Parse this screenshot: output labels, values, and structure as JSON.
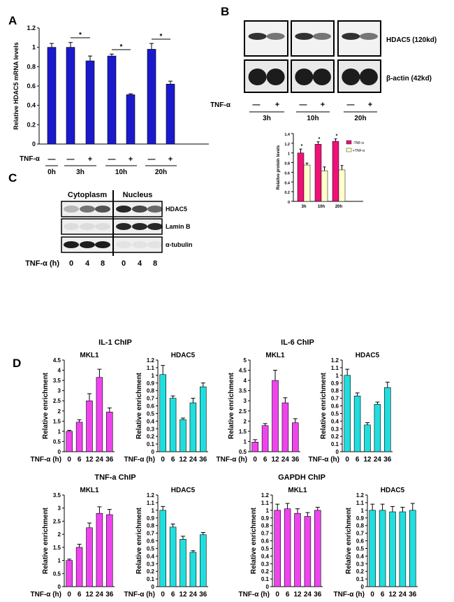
{
  "panels": {
    "A": "A",
    "B": "B",
    "C": "C",
    "D": "D"
  },
  "colors": {
    "panelA": "#1a1acc",
    "tnf_minus": "#ee1177",
    "tnf_plus": "#ffffcc",
    "mkl1": "#ee44ee",
    "hdac5": "#22dddd"
  },
  "chart_data": [
    {
      "id": "A",
      "type": "bar",
      "ylabel": "Relative HDAC5 mRNA levels",
      "ylim": [
        0,
        1.2
      ],
      "yticks": [
        "0",
        "0.2",
        "0.4",
        "0.6",
        "0.8",
        "1",
        "1.2"
      ],
      "values": [
        1.0,
        1.0,
        0.86,
        0.91,
        0.51,
        0.98,
        0.62
      ],
      "errors": [
        0.04,
        0.05,
        0.05,
        0.02,
        0.01,
        0.06,
        0.03
      ],
      "tnf_label": "TNF-α",
      "tnf_signs": [
        "—",
        "—",
        "+",
        "—",
        "+",
        "—",
        "+"
      ],
      "groups": [
        "0h",
        "3h",
        "10h",
        "20h"
      ],
      "significance": [
        "*",
        "*",
        "*"
      ]
    },
    {
      "id": "B-blot",
      "type": "blot",
      "bands": [
        "HDAC5 (120kd)",
        "β-actin (42kd)"
      ],
      "tnf_label": "TNF-α",
      "tnf_signs": [
        "—",
        "+",
        "—",
        "+",
        "—",
        "+"
      ],
      "groups": [
        "3h",
        "10h",
        "20h"
      ]
    },
    {
      "id": "B-quant",
      "type": "bar",
      "ylabel": "Relative protein levels",
      "ylim": [
        0,
        1.4
      ],
      "yticks": [
        "0",
        "0.2",
        "0.4",
        "0.6",
        "0.8",
        "1",
        "1.2",
        "1.4"
      ],
      "categories": [
        "3h",
        "10h",
        "20h"
      ],
      "series": [
        {
          "name": "-TNF-α",
          "values": [
            1.0,
            1.18,
            1.24
          ],
          "errors": [
            0.08,
            0.05,
            0.05
          ]
        },
        {
          "name": "+TNF-α",
          "values": [
            0.75,
            0.63,
            0.65
          ],
          "errors": [
            0.04,
            0.08,
            0.09
          ]
        }
      ],
      "significance": [
        "*",
        "*",
        "*"
      ]
    },
    {
      "id": "C-blot",
      "type": "blot",
      "fractions": [
        "Cytoplasm",
        "Nucleus"
      ],
      "bands": [
        "HDAC5",
        "Lamin B",
        "α-tubulin"
      ],
      "xlabel": "TNF-α (h)",
      "lanes": [
        "0",
        "4",
        "8",
        "0",
        "4",
        "8"
      ]
    },
    {
      "id": "D",
      "type": "bar",
      "title": "IL-1 ChIP",
      "subtitle": "MKL1",
      "ylabel": "Relative enrichment",
      "xlabel": "TNF-α (h)",
      "categories": [
        "0",
        "6",
        "12",
        "24",
        "36"
      ],
      "values": [
        1.0,
        1.45,
        2.5,
        3.65,
        1.95
      ],
      "errors": [
        0.05,
        0.12,
        0.35,
        0.4,
        0.2
      ],
      "ylim": [
        0,
        4.5
      ],
      "yticks": [
        "0",
        "0.5",
        "1",
        "1.5",
        "2",
        "2.5",
        "3",
        "3.5",
        "4",
        "4.5"
      ]
    },
    {
      "id": "D2",
      "type": "bar",
      "subtitle": "HDAC5",
      "ylabel": "Relative enrichment",
      "xlabel": "TNF-α (h)",
      "categories": [
        "0",
        "6",
        "12",
        "24",
        "36"
      ],
      "values": [
        1.01,
        0.7,
        0.42,
        0.64,
        0.85
      ],
      "errors": [
        0.12,
        0.03,
        0.02,
        0.06,
        0.05
      ],
      "ylim": [
        0,
        1.2
      ],
      "yticks": [
        "0",
        "0.1",
        "0.2",
        "0.3",
        "0.4",
        "0.5",
        "0.6",
        "0.7",
        "0.8",
        "0.9",
        "1",
        "1.1",
        "1.2"
      ]
    },
    {
      "id": "D3",
      "type": "bar",
      "title": "IL-6 ChIP",
      "subtitle": "MKL1",
      "ylabel": "Relative enrichment",
      "xlabel": "TNF-α (h)",
      "categories": [
        "0",
        "6",
        "12",
        "24",
        "36"
      ],
      "values": [
        0.97,
        1.78,
        4.0,
        2.9,
        1.92
      ],
      "errors": [
        0.12,
        0.1,
        0.5,
        0.25,
        0.2
      ],
      "ylim": [
        0.5,
        5
      ],
      "yticks": [
        "0.5",
        "1",
        "1.5",
        "2",
        "2.5",
        "3",
        "3.5",
        "4",
        "4.5",
        "5"
      ]
    },
    {
      "id": "D4",
      "type": "bar",
      "subtitle": "HDAC5",
      "ylabel": "Relative enrichment",
      "xlabel": "TNF-α (h)",
      "categories": [
        "0",
        "6",
        "12",
        "24",
        "36"
      ],
      "values": [
        1.0,
        0.73,
        0.35,
        0.62,
        0.84
      ],
      "errors": [
        0.08,
        0.04,
        0.03,
        0.03,
        0.07
      ],
      "ylim": [
        0,
        1.2
      ],
      "yticks": [
        "0",
        "0.1",
        "0.2",
        "0.3",
        "0.4",
        "0.5",
        "0.6",
        "0.7",
        "0.8",
        "0.9",
        "1",
        "1.1",
        "1.2"
      ]
    },
    {
      "id": "D5",
      "type": "bar",
      "title": "TNF-a ChIP",
      "subtitle": "MKL1",
      "ylabel": "Relative enrichment",
      "xlabel": "TNF-α (h)",
      "categories": [
        "0",
        "6",
        "12",
        "24",
        "36"
      ],
      "values": [
        1.0,
        1.5,
        2.25,
        2.8,
        2.75
      ],
      "errors": [
        0.05,
        0.12,
        0.18,
        0.25,
        0.2
      ],
      "ylim": [
        0,
        3.5
      ],
      "yticks": [
        "0",
        "0.5",
        "1",
        "1.5",
        "2",
        "2.5",
        "3",
        "3.5"
      ]
    },
    {
      "id": "D6",
      "type": "bar",
      "subtitle": "HDAC5",
      "ylabel": "Relative enrichment",
      "xlabel": "TNF-α (h)",
      "categories": [
        "0",
        "6",
        "12",
        "24",
        "36"
      ],
      "values": [
        1.0,
        0.78,
        0.62,
        0.45,
        0.68
      ],
      "errors": [
        0.05,
        0.04,
        0.04,
        0.02,
        0.03
      ],
      "ylim": [
        0,
        1.2
      ],
      "yticks": [
        "0",
        "0.1",
        "0.2",
        "0.3",
        "0.4",
        "0.5",
        "0.6",
        "0.7",
        "0.8",
        "0.9",
        "1",
        "1.1",
        "1.2"
      ]
    },
    {
      "id": "D7",
      "type": "bar",
      "title": "GAPDH ChIP",
      "subtitle": "MKL1",
      "ylabel": "Relative enrichment",
      "xlabel": "TNF-α (h)",
      "categories": [
        "0",
        "6",
        "12",
        "24",
        "36"
      ],
      "values": [
        1.0,
        1.02,
        0.96,
        0.92,
        1.0
      ],
      "errors": [
        0.08,
        0.07,
        0.06,
        0.05,
        0.04
      ],
      "ylim": [
        0,
        1.2
      ],
      "yticks": [
        "0",
        "0.1",
        "0.2",
        "0.3",
        "0.4",
        "0.5",
        "0.6",
        "0.7",
        "0.8",
        "0.9",
        "1",
        "1.1",
        "1.2"
      ]
    },
    {
      "id": "D8",
      "type": "bar",
      "subtitle": "HDAC5",
      "ylabel": "Relative enrichment",
      "xlabel": "TNF-α (h)",
      "categories": [
        "0",
        "6",
        "12",
        "24",
        "36"
      ],
      "values": [
        1.0,
        1.0,
        0.98,
        0.98,
        1.0
      ],
      "errors": [
        0.08,
        0.08,
        0.07,
        0.06,
        0.09
      ],
      "ylim": [
        0,
        1.2
      ],
      "yticks": [
        "0",
        "0.1",
        "0.2",
        "0.3",
        "0.4",
        "0.5",
        "0.6",
        "0.7",
        "0.8",
        "0.9",
        "1",
        "1.1",
        "1.2"
      ]
    }
  ]
}
